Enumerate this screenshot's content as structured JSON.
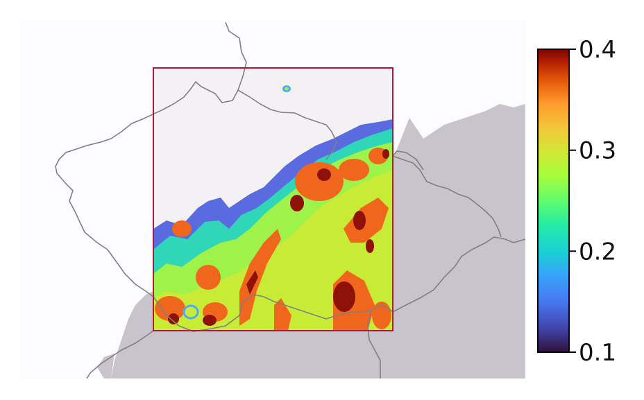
{
  "colorbar": {
    "colormap": "turbo",
    "min": 0.1,
    "max": 0.4,
    "ticks": [
      {
        "value": 0.1,
        "label": "0.1"
      },
      {
        "value": 0.2,
        "label": "0.2"
      },
      {
        "value": 0.3,
        "label": "0.3"
      },
      {
        "value": 0.4,
        "label": "0.4"
      }
    ]
  },
  "colors": {
    "land_background": "#fcfbfd",
    "radar_coverage_gray": "#c9c3cc",
    "domain_interior": "#f4f1f5",
    "domain_outline": "#b0173a",
    "border_lines": "#808080"
  }
}
